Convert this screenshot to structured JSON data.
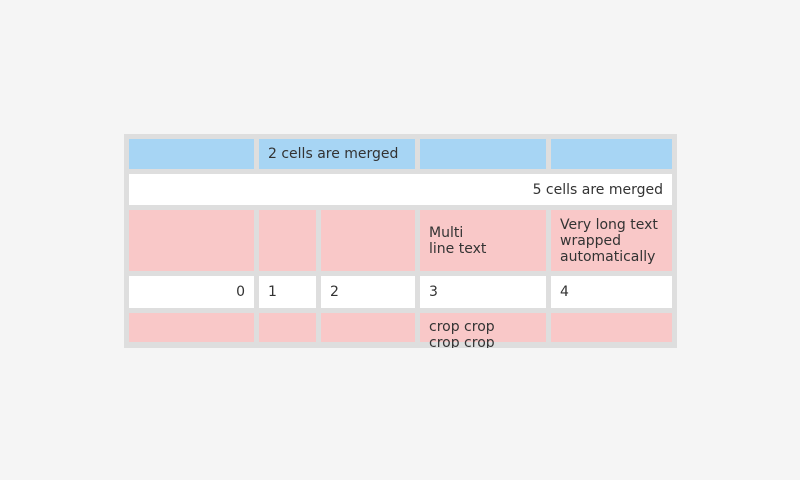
{
  "page": {
    "background_color": "#f5f5f5"
  },
  "table": {
    "colors": {
      "grid_background": "#dedede",
      "cell_blue": "#a7d5f4",
      "cell_pink": "#f9c8c8",
      "cell_white": "#ffffff",
      "text": "#333333"
    },
    "row1": {
      "merged_label": "2 cells are merged"
    },
    "row2": {
      "merged_label": "5 cells are merged"
    },
    "row3": {
      "multiline_label": "Multi\nline text",
      "wrapped_label": "Very long text wrapped automatically"
    },
    "row4": {
      "values": [
        "0",
        "1",
        "2",
        "3",
        "4"
      ]
    },
    "row5": {
      "cropped_label": "crop crop crop crop"
    }
  }
}
